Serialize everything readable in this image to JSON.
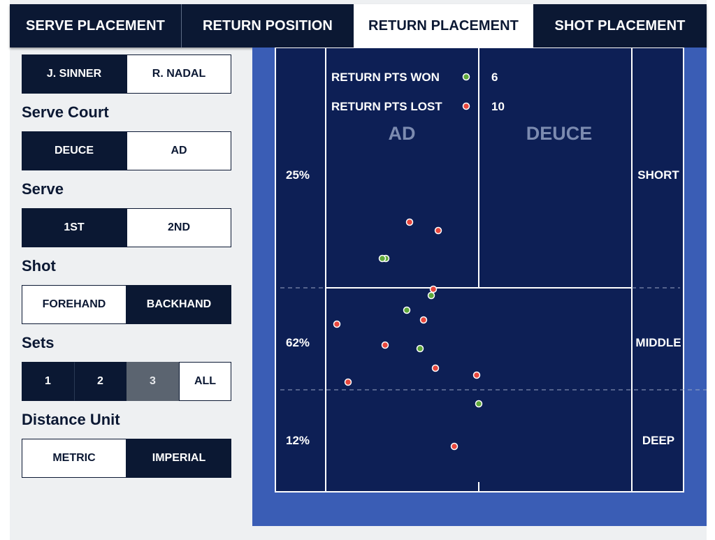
{
  "tabs": [
    {
      "label": "SERVE PLACEMENT",
      "active": false
    },
    {
      "label": "RETURN POSITION",
      "active": false
    },
    {
      "label": "RETURN PLACEMENT",
      "active": true
    },
    {
      "label": "SHOT PLACEMENT",
      "active": false
    }
  ],
  "filters": {
    "players": {
      "options": [
        "J. SINNER",
        "R. NADAL"
      ],
      "selected": "J. SINNER"
    },
    "serve_court": {
      "title": "Serve Court",
      "options": [
        "DEUCE",
        "AD"
      ],
      "selected": "DEUCE"
    },
    "serve": {
      "title": "Serve",
      "options": [
        "1ST",
        "2ND"
      ],
      "selected": "1ST"
    },
    "shot": {
      "title": "Shot",
      "options": [
        "FOREHAND",
        "BACKHAND"
      ],
      "selected": "BACKHAND"
    },
    "sets": {
      "title": "Sets",
      "options": [
        "1",
        "2",
        "3",
        "ALL"
      ],
      "selected": [
        "1",
        "2"
      ],
      "disabled": "3"
    },
    "distance_unit": {
      "title": "Distance Unit",
      "options": [
        "METRIC",
        "IMPERIAL"
      ],
      "selected": "IMPERIAL"
    }
  },
  "court": {
    "legend": {
      "won_label": "RETURN PTS WON",
      "won_value": "6",
      "lost_label": "RETURN PTS LOST",
      "lost_value": "10"
    },
    "side_labels": {
      "left": "AD",
      "right": "DEUCE"
    },
    "zones": [
      {
        "name": "SHORT",
        "pct": "25%"
      },
      {
        "name": "MIDDLE",
        "pct": "62%"
      },
      {
        "name": "DEEP",
        "pct": "12%"
      }
    ],
    "colors": {
      "court_bg": "#0d1f55",
      "surround": "#3a5db5",
      "won": "#5fa83a",
      "lost": "#e8473d",
      "side_label": "#7c8bb0"
    }
  }
}
